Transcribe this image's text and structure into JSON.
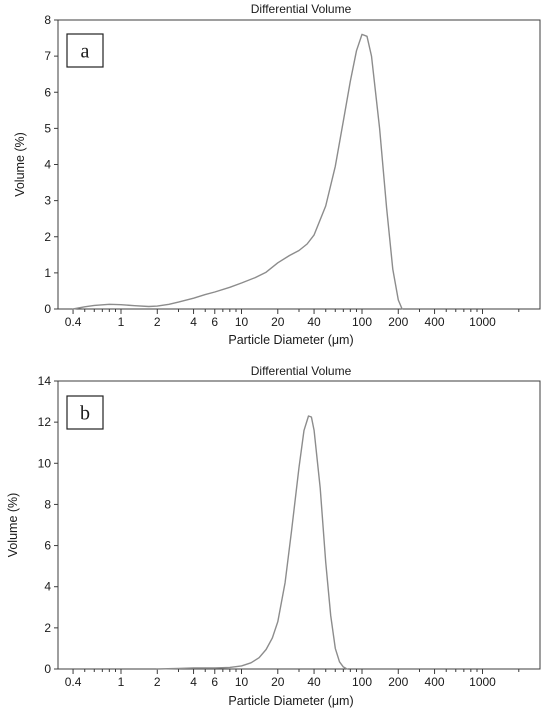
{
  "colors": {
    "curve": "#8c8c8c",
    "axis": "#3c3c3c",
    "background": "#ffffff"
  },
  "chart_data": [
    {
      "type": "line",
      "title": "Differential Volume",
      "panel_label": "a",
      "xlabel": "Particle Diameter (μm)",
      "ylabel": "Volume (%)",
      "x_scale": "log",
      "xlim": [
        0.3,
        3000
      ],
      "ylim": [
        0,
        8
      ],
      "xticks": [
        0.4,
        1,
        2,
        4,
        6,
        10,
        20,
        40,
        100,
        200,
        400,
        1000
      ],
      "xtick_labels": [
        "0.4",
        "1",
        "2",
        "4",
        "6",
        "10",
        "20",
        "40",
        "100",
        "200",
        "400",
        "1000"
      ],
      "yticks": [
        0,
        1,
        2,
        3,
        4,
        5,
        6,
        7,
        8
      ],
      "ytick_labels": [
        "0",
        "1",
        "2",
        "3",
        "4",
        "5",
        "6",
        "7",
        "8"
      ],
      "grid": false,
      "legend": "none",
      "series": [
        {
          "x": [
            0.4,
            0.5,
            0.6,
            0.8,
            1,
            1.3,
            1.7,
            2,
            2.5,
            3,
            4,
            5,
            6,
            8,
            10,
            13,
            16,
            20,
            25,
            30,
            35,
            40,
            50,
            60,
            70,
            80,
            90,
            100,
            110,
            120,
            140,
            160,
            180,
            200,
            215
          ],
          "y": [
            0.0,
            0.06,
            0.1,
            0.13,
            0.12,
            0.09,
            0.07,
            0.08,
            0.13,
            0.19,
            0.3,
            0.4,
            0.47,
            0.6,
            0.72,
            0.87,
            1.02,
            1.28,
            1.48,
            1.62,
            1.8,
            2.05,
            2.85,
            3.95,
            5.2,
            6.3,
            7.15,
            7.6,
            7.55,
            7.0,
            5.0,
            2.8,
            1.1,
            0.25,
            0.0
          ]
        }
      ]
    },
    {
      "type": "line",
      "title": "Differential Volume",
      "panel_label": "b",
      "xlabel": "Particle Diameter (μm)",
      "ylabel": "Volume (%)",
      "x_scale": "log",
      "xlim": [
        0.3,
        3000
      ],
      "ylim": [
        0,
        14
      ],
      "xticks": [
        0.4,
        1,
        2,
        4,
        6,
        10,
        20,
        40,
        100,
        200,
        400,
        1000
      ],
      "xtick_labels": [
        "0.4",
        "1",
        "2",
        "4",
        "6",
        "10",
        "20",
        "40",
        "100",
        "200",
        "400",
        "1000"
      ],
      "yticks": [
        0,
        2,
        4,
        6,
        8,
        10,
        12,
        14
      ],
      "ytick_labels": [
        "0",
        "2",
        "4",
        "6",
        "8",
        "10",
        "12",
        "14"
      ],
      "grid": false,
      "legend": "none",
      "series": [
        {
          "x": [
            2,
            3,
            4,
            5,
            6,
            8,
            10,
            12,
            14,
            16,
            18,
            20,
            23,
            26,
            30,
            33,
            36,
            38,
            40,
            45,
            50,
            55,
            60,
            65,
            70,
            75
          ],
          "y": [
            0.0,
            0.03,
            0.05,
            0.05,
            0.05,
            0.08,
            0.15,
            0.3,
            0.55,
            0.95,
            1.5,
            2.3,
            4.2,
            6.7,
            9.8,
            11.6,
            12.3,
            12.25,
            11.6,
            8.8,
            5.2,
            2.6,
            1.0,
            0.35,
            0.1,
            0.0
          ]
        }
      ]
    }
  ]
}
